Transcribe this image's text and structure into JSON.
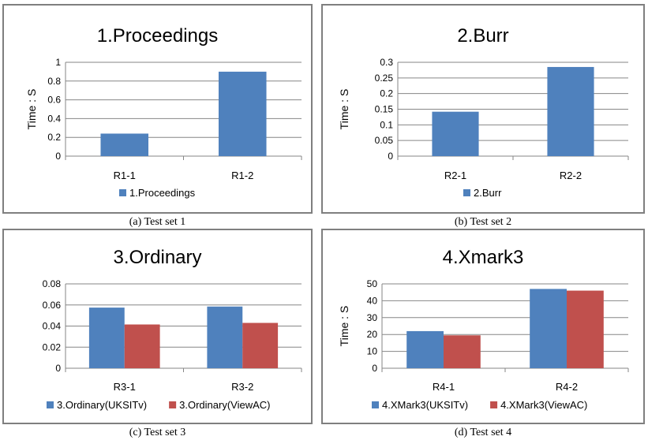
{
  "captions": [
    "(a) Test set 1",
    "(b) Test set 2",
    "(c) Test set 3",
    "(d) Test set 4"
  ],
  "chart_data": [
    {
      "type": "bar",
      "title": "1.Proceedings",
      "ylabel": "Time : S",
      "xlabel": "",
      "categories": [
        "R1-1",
        "R1-2"
      ],
      "series": [
        {
          "name": "1.Proceedings",
          "values": [
            0.24,
            0.9
          ],
          "color": "#4f81bd"
        }
      ],
      "ylim": [
        0,
        1
      ],
      "yticks": [
        "0",
        "0.2",
        "0.4",
        "0.6",
        "0.8",
        "1"
      ],
      "grid": true,
      "legend": "bottom"
    },
    {
      "type": "bar",
      "title": "2.Burr",
      "ylabel": "Time : S",
      "xlabel": "",
      "categories": [
        "R2-1",
        "R2-2"
      ],
      "series": [
        {
          "name": "2.Burr",
          "values": [
            0.142,
            0.285
          ],
          "color": "#4f81bd"
        }
      ],
      "ylim": [
        0,
        0.3
      ],
      "yticks": [
        "0",
        "0.05",
        "0.1",
        "0.15",
        "0.2",
        "0.25",
        "0.3"
      ],
      "grid": true,
      "legend": "bottom"
    },
    {
      "type": "bar",
      "title": "3.Ordinary",
      "ylabel": "",
      "xlabel": "",
      "categories": [
        "R3-1",
        "R3-2"
      ],
      "series": [
        {
          "name": "3.Ordinary(UKSITv)",
          "values": [
            0.0575,
            0.0585
          ],
          "color": "#4f81bd"
        },
        {
          "name": "3.Ordinary(ViewAC)",
          "values": [
            0.0415,
            0.043
          ],
          "color": "#c0504d"
        }
      ],
      "ylim": [
        0,
        0.08
      ],
      "yticks": [
        "0",
        "0.02",
        "0.04",
        "0.06",
        "0.08"
      ],
      "grid": true,
      "legend": "bottom"
    },
    {
      "type": "bar",
      "title": "4.Xmark3",
      "ylabel": "Time : S",
      "xlabel": "",
      "categories": [
        "R4-1",
        "R4-2"
      ],
      "series": [
        {
          "name": "4.XMark3(UKSITv)",
          "values": [
            22,
            47
          ],
          "color": "#4f81bd"
        },
        {
          "name": "4.XMark3(ViewAC)",
          "values": [
            19.5,
            46
          ],
          "color": "#c0504d"
        }
      ],
      "ylim": [
        0,
        50
      ],
      "yticks": [
        "0",
        "10",
        "20",
        "30",
        "40",
        "50"
      ],
      "grid": true,
      "legend": "bottom"
    }
  ]
}
